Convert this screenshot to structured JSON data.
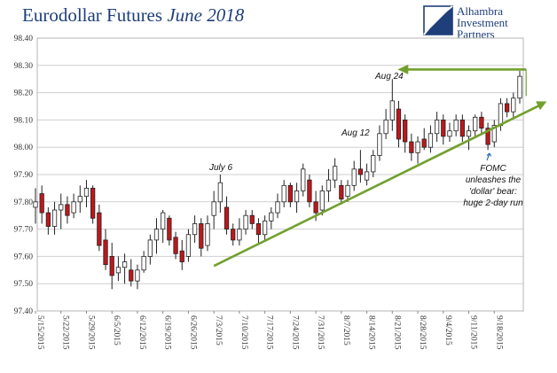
{
  "title": {
    "main": "Eurodollar Futures ",
    "em": "June 2018"
  },
  "logo": {
    "lines": [
      "Alhambra",
      "Investment",
      "Partners"
    ]
  },
  "colors": {
    "up": "#ffffff",
    "down": "#c0171b",
    "wick": "#222222",
    "trend": "#72a02e",
    "grid": "#cfcfcf",
    "title": "#1f3f7a"
  },
  "chart_data": {
    "type": "candlestick",
    "title": "Eurodollar Futures June 2018",
    "ylim": [
      97.4,
      98.4
    ],
    "yticks": [
      "97.40",
      "97.50",
      "97.60",
      "97.70",
      "97.80",
      "97.90",
      "98.00",
      "98.10",
      "98.20",
      "98.30",
      "98.40"
    ],
    "xticks": [
      "5/15/2015",
      "5/22/2015",
      "5/29/2015",
      "6/5/2015",
      "6/12/2015",
      "6/19/2015",
      "6/26/2015",
      "7/3/2015",
      "7/10/2015",
      "7/17/2015",
      "7/24/2015",
      "7/31/2015",
      "8/7/2015",
      "8/14/2015",
      "8/21/2015",
      "8/28/2015",
      "9/4/2015",
      "9/11/2015",
      "9/18/2015"
    ],
    "grid": true,
    "candles": [
      {
        "o": 97.78,
        "h": 97.85,
        "l": 97.72,
        "c": 97.8
      },
      {
        "o": 97.83,
        "h": 97.86,
        "l": 97.72,
        "c": 97.76
      },
      {
        "o": 97.76,
        "h": 97.78,
        "l": 97.68,
        "c": 97.71
      },
      {
        "o": 97.71,
        "h": 97.8,
        "l": 97.68,
        "c": 97.77
      },
      {
        "o": 97.77,
        "h": 97.83,
        "l": 97.7,
        "c": 97.79
      },
      {
        "o": 97.79,
        "h": 97.82,
        "l": 97.72,
        "c": 97.75
      },
      {
        "o": 97.76,
        "h": 97.83,
        "l": 97.74,
        "c": 97.8
      },
      {
        "o": 97.8,
        "h": 97.86,
        "l": 97.76,
        "c": 97.82
      },
      {
        "o": 97.82,
        "h": 97.88,
        "l": 97.78,
        "c": 97.85
      },
      {
        "o": 97.85,
        "h": 97.86,
        "l": 97.72,
        "c": 97.74
      },
      {
        "o": 97.76,
        "h": 97.79,
        "l": 97.62,
        "c": 97.64
      },
      {
        "o": 97.66,
        "h": 97.7,
        "l": 97.55,
        "c": 97.57
      },
      {
        "o": 97.6,
        "h": 97.65,
        "l": 97.48,
        "c": 97.53
      },
      {
        "o": 97.54,
        "h": 97.6,
        "l": 97.51,
        "c": 97.56
      },
      {
        "o": 97.56,
        "h": 97.61,
        "l": 97.5,
        "c": 97.58
      },
      {
        "o": 97.55,
        "h": 97.59,
        "l": 97.49,
        "c": 97.51
      },
      {
        "o": 97.51,
        "h": 97.57,
        "l": 97.48,
        "c": 97.55
      },
      {
        "o": 97.55,
        "h": 97.62,
        "l": 97.54,
        "c": 97.6
      },
      {
        "o": 97.6,
        "h": 97.68,
        "l": 97.57,
        "c": 97.66
      },
      {
        "o": 97.66,
        "h": 97.74,
        "l": 97.61,
        "c": 97.7
      },
      {
        "o": 97.7,
        "h": 97.77,
        "l": 97.65,
        "c": 97.76
      },
      {
        "o": 97.74,
        "h": 97.75,
        "l": 97.64,
        "c": 97.66
      },
      {
        "o": 97.67,
        "h": 97.69,
        "l": 97.59,
        "c": 97.61
      },
      {
        "o": 97.62,
        "h": 97.66,
        "l": 97.55,
        "c": 97.58
      },
      {
        "o": 97.6,
        "h": 97.7,
        "l": 97.58,
        "c": 97.68
      },
      {
        "o": 97.68,
        "h": 97.75,
        "l": 97.65,
        "c": 97.72
      },
      {
        "o": 97.72,
        "h": 97.74,
        "l": 97.6,
        "c": 97.63
      },
      {
        "o": 97.64,
        "h": 97.75,
        "l": 97.62,
        "c": 97.72
      },
      {
        "o": 97.75,
        "h": 97.84,
        "l": 97.7,
        "c": 97.8
      },
      {
        "o": 97.8,
        "h": 97.9,
        "l": 97.76,
        "c": 97.87
      },
      {
        "o": 97.78,
        "h": 97.82,
        "l": 97.68,
        "c": 97.7
      },
      {
        "o": 97.7,
        "h": 97.72,
        "l": 97.64,
        "c": 97.66
      },
      {
        "o": 97.66,
        "h": 97.74,
        "l": 97.64,
        "c": 97.7
      },
      {
        "o": 97.7,
        "h": 97.77,
        "l": 97.68,
        "c": 97.75
      },
      {
        "o": 97.75,
        "h": 97.77,
        "l": 97.7,
        "c": 97.72
      },
      {
        "o": 97.72,
        "h": 97.74,
        "l": 97.65,
        "c": 97.68
      },
      {
        "o": 97.68,
        "h": 97.75,
        "l": 97.66,
        "c": 97.73
      },
      {
        "o": 97.73,
        "h": 97.78,
        "l": 97.7,
        "c": 97.76
      },
      {
        "o": 97.76,
        "h": 97.83,
        "l": 97.74,
        "c": 97.8
      },
      {
        "o": 97.8,
        "h": 97.88,
        "l": 97.78,
        "c": 97.86
      },
      {
        "o": 97.86,
        "h": 97.87,
        "l": 97.78,
        "c": 97.8
      },
      {
        "o": 97.8,
        "h": 97.87,
        "l": 97.76,
        "c": 97.84
      },
      {
        "o": 97.84,
        "h": 97.94,
        "l": 97.82,
        "c": 97.92
      },
      {
        "o": 97.88,
        "h": 97.9,
        "l": 97.78,
        "c": 97.8
      },
      {
        "o": 97.8,
        "h": 97.84,
        "l": 97.73,
        "c": 97.76
      },
      {
        "o": 97.77,
        "h": 97.86,
        "l": 97.75,
        "c": 97.84
      },
      {
        "o": 97.84,
        "h": 97.92,
        "l": 97.8,
        "c": 97.88
      },
      {
        "o": 97.88,
        "h": 97.96,
        "l": 97.85,
        "c": 97.93
      },
      {
        "o": 97.86,
        "h": 97.88,
        "l": 97.79,
        "c": 97.81
      },
      {
        "o": 97.82,
        "h": 97.88,
        "l": 97.8,
        "c": 97.86
      },
      {
        "o": 97.86,
        "h": 97.95,
        "l": 97.84,
        "c": 97.92
      },
      {
        "o": 97.92,
        "h": 97.99,
        "l": 97.87,
        "c": 97.9
      },
      {
        "o": 97.88,
        "h": 97.94,
        "l": 97.86,
        "c": 97.91
      },
      {
        "o": 97.91,
        "h": 97.99,
        "l": 97.89,
        "c": 97.97
      },
      {
        "o": 97.97,
        "h": 98.08,
        "l": 97.95,
        "c": 98.05
      },
      {
        "o": 98.05,
        "h": 98.14,
        "l": 98.03,
        "c": 98.1
      },
      {
        "o": 98.1,
        "h": 98.25,
        "l": 98.06,
        "c": 98.17
      },
      {
        "o": 98.14,
        "h": 98.17,
        "l": 98.0,
        "c": 98.03
      },
      {
        "o": 98.1,
        "h": 98.12,
        "l": 97.98,
        "c": 98.02
      },
      {
        "o": 98.02,
        "h": 98.05,
        "l": 97.95,
        "c": 97.98
      },
      {
        "o": 97.98,
        "h": 98.04,
        "l": 97.94,
        "c": 98.02
      },
      {
        "o": 98.03,
        "h": 98.07,
        "l": 97.99,
        "c": 98.0
      },
      {
        "o": 98.0,
        "h": 98.08,
        "l": 97.98,
        "c": 98.05
      },
      {
        "o": 98.05,
        "h": 98.13,
        "l": 98.02,
        "c": 98.1
      },
      {
        "o": 98.1,
        "h": 98.12,
        "l": 98.01,
        "c": 98.04
      },
      {
        "o": 98.04,
        "h": 98.09,
        "l": 98.02,
        "c": 98.06
      },
      {
        "o": 98.06,
        "h": 98.12,
        "l": 98.04,
        "c": 98.1
      },
      {
        "o": 98.1,
        "h": 98.12,
        "l": 98.02,
        "c": 98.04
      },
      {
        "o": 98.04,
        "h": 98.08,
        "l": 97.99,
        "c": 98.06
      },
      {
        "o": 98.06,
        "h": 98.12,
        "l": 98.04,
        "c": 98.11
      },
      {
        "o": 98.11,
        "h": 98.13,
        "l": 98.05,
        "c": 98.07
      },
      {
        "o": 98.07,
        "h": 98.09,
        "l": 97.99,
        "c": 98.01
      },
      {
        "o": 98.02,
        "h": 98.1,
        "l": 98.0,
        "c": 98.08
      },
      {
        "o": 98.08,
        "h": 98.18,
        "l": 98.06,
        "c": 98.16
      },
      {
        "o": 98.16,
        "h": 98.18,
        "l": 98.11,
        "c": 98.13
      },
      {
        "o": 98.13,
        "h": 98.2,
        "l": 98.11,
        "c": 98.18
      },
      {
        "o": 98.18,
        "h": 98.28,
        "l": 98.16,
        "c": 98.26
      }
    ],
    "annotations": [
      {
        "text": "July 6"
      },
      {
        "text": "Aug 12"
      },
      {
        "text": "Aug 24"
      },
      {
        "lines": [
          "FOMC",
          "unleashes the",
          "'dollar' bear:",
          "huge 2-day run"
        ]
      }
    ],
    "trendline": {
      "from": {
        "index": 28,
        "y": 97.565
      },
      "to": {
        "index": 78,
        "y": 98.155
      }
    },
    "range_arrow": {
      "from_index": 56,
      "to_index": 77,
      "y": 98.285
    }
  }
}
